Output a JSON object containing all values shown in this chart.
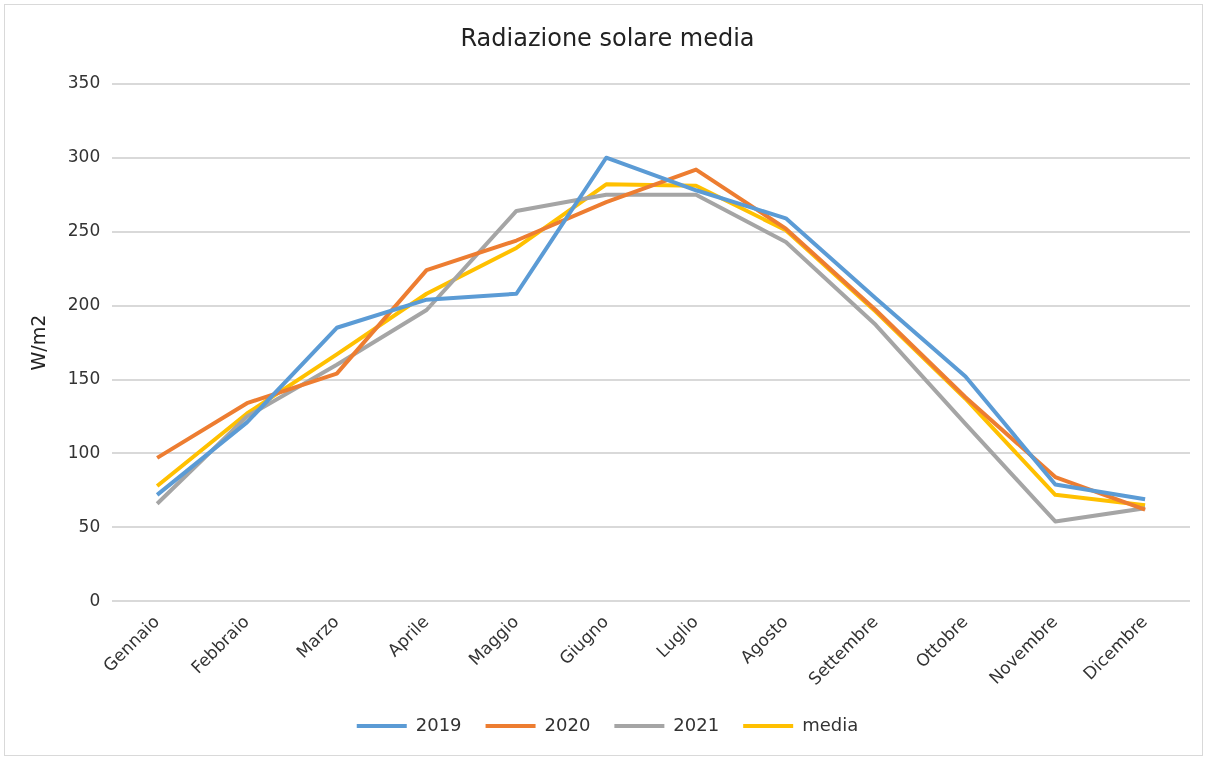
{
  "chart_data": {
    "type": "line",
    "title": "Radiazione solare media",
    "ylabel": "W/m2",
    "categories": [
      "Gennaio",
      "Febbraio",
      "Marzo",
      "Aprile",
      "Maggio",
      "Giugno",
      "Luglio",
      "Agosto",
      "Settembre",
      "Ottobre",
      "Novembre",
      "Dicembre"
    ],
    "series": [
      {
        "name": "2019",
        "color": "#5b9bd5",
        "values": [
          72,
          121,
          185,
          204,
          208,
          300,
          278,
          259,
          205,
          152,
          79,
          69
        ]
      },
      {
        "name": "2020",
        "color": "#ed7d31",
        "values": [
          97,
          134,
          154,
          224,
          244,
          270,
          292,
          252,
          197,
          138,
          84,
          62
        ]
      },
      {
        "name": "2021",
        "color": "#a5a5a5",
        "values": [
          66,
          125,
          160,
          197,
          264,
          275,
          275,
          243,
          187,
          120,
          54,
          63
        ]
      },
      {
        "name": "media",
        "color": "#ffc000",
        "values": [
          78,
          127,
          167,
          208,
          239,
          282,
          281,
          251,
          196,
          137,
          72,
          65
        ]
      }
    ],
    "ylim": [
      0,
      350
    ],
    "yticks": [
      0,
      50,
      100,
      150,
      200,
      250,
      300,
      350
    ],
    "grid": "y",
    "legend": "bottom",
    "marker": "none",
    "line_style": "solid"
  }
}
